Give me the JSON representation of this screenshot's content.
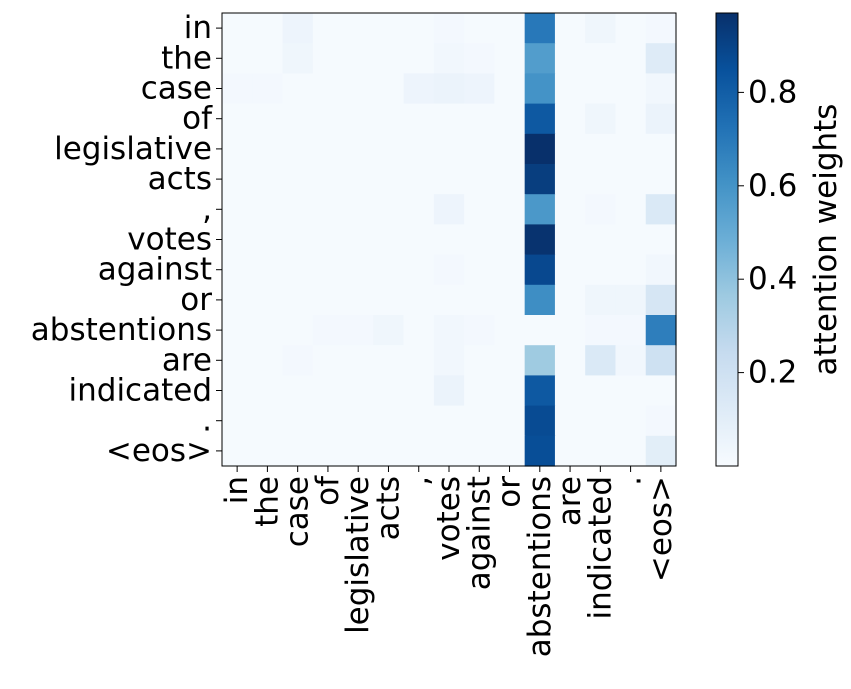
{
  "chart_data": {
    "type": "heatmap",
    "title": "",
    "x_tokens": [
      "in",
      "the",
      "case",
      "of",
      "legislative",
      "acts",
      ",",
      "votes",
      "against",
      "or",
      "abstentions",
      "are",
      "indicated",
      ".",
      "<eos>"
    ],
    "y_tokens": [
      "in",
      "the",
      "case",
      "of",
      "legislative",
      "acts",
      ",",
      "votes",
      "against",
      "or",
      "abstentions",
      "are",
      "indicated",
      ".",
      "<eos>"
    ],
    "colormap": "Blues",
    "vmin": 0.0,
    "vmax": 0.97,
    "colorbar": {
      "label": "attention weights",
      "ticks": [
        0.2,
        0.4,
        0.6,
        0.8
      ],
      "tick_labels": [
        "0.2",
        "0.4",
        "0.6",
        "0.8"
      ]
    },
    "values": [
      [
        0.01,
        0.01,
        0.05,
        0.01,
        0.01,
        0.01,
        0.01,
        0.02,
        0.01,
        0.01,
        0.7,
        0.01,
        0.04,
        0.01,
        0.02
      ],
      [
        0.01,
        0.01,
        0.04,
        0.01,
        0.01,
        0.01,
        0.01,
        0.03,
        0.02,
        0.01,
        0.56,
        0.01,
        0.01,
        0.01,
        0.12
      ],
      [
        0.02,
        0.02,
        0.01,
        0.01,
        0.01,
        0.01,
        0.05,
        0.06,
        0.05,
        0.01,
        0.6,
        0.01,
        0.01,
        0.01,
        0.03
      ],
      [
        0.01,
        0.01,
        0.01,
        0.01,
        0.01,
        0.01,
        0.01,
        0.01,
        0.01,
        0.01,
        0.82,
        0.01,
        0.04,
        0.01,
        0.06
      ],
      [
        0.01,
        0.01,
        0.01,
        0.01,
        0.01,
        0.01,
        0.01,
        0.01,
        0.01,
        0.01,
        0.97,
        0.01,
        0.01,
        0.01,
        0.01
      ],
      [
        0.01,
        0.01,
        0.01,
        0.01,
        0.01,
        0.01,
        0.01,
        0.01,
        0.01,
        0.01,
        0.92,
        0.01,
        0.01,
        0.01,
        0.01
      ],
      [
        0.01,
        0.01,
        0.01,
        0.01,
        0.01,
        0.01,
        0.01,
        0.05,
        0.01,
        0.01,
        0.58,
        0.01,
        0.02,
        0.01,
        0.14
      ],
      [
        0.01,
        0.01,
        0.01,
        0.01,
        0.01,
        0.01,
        0.01,
        0.01,
        0.01,
        0.01,
        0.96,
        0.01,
        0.01,
        0.01,
        0.01
      ],
      [
        0.01,
        0.01,
        0.01,
        0.01,
        0.01,
        0.01,
        0.01,
        0.02,
        0.01,
        0.01,
        0.88,
        0.01,
        0.01,
        0.01,
        0.03
      ],
      [
        0.01,
        0.01,
        0.01,
        0.01,
        0.01,
        0.01,
        0.01,
        0.01,
        0.01,
        0.01,
        0.62,
        0.01,
        0.04,
        0.04,
        0.16
      ],
      [
        0.01,
        0.01,
        0.01,
        0.02,
        0.02,
        0.04,
        0.01,
        0.03,
        0.02,
        0.01,
        0.01,
        0.01,
        0.02,
        0.02,
        0.68
      ],
      [
        0.01,
        0.01,
        0.02,
        0.01,
        0.01,
        0.01,
        0.01,
        0.03,
        0.01,
        0.01,
        0.36,
        0.01,
        0.14,
        0.03,
        0.2
      ],
      [
        0.01,
        0.01,
        0.01,
        0.01,
        0.01,
        0.01,
        0.01,
        0.06,
        0.01,
        0.01,
        0.82,
        0.01,
        0.01,
        0.01,
        0.01
      ],
      [
        0.01,
        0.01,
        0.01,
        0.01,
        0.01,
        0.01,
        0.01,
        0.01,
        0.01,
        0.01,
        0.87,
        0.01,
        0.01,
        0.01,
        0.02
      ],
      [
        0.01,
        0.01,
        0.01,
        0.01,
        0.01,
        0.01,
        0.01,
        0.01,
        0.01,
        0.01,
        0.86,
        0.01,
        0.01,
        0.01,
        0.1
      ]
    ]
  }
}
